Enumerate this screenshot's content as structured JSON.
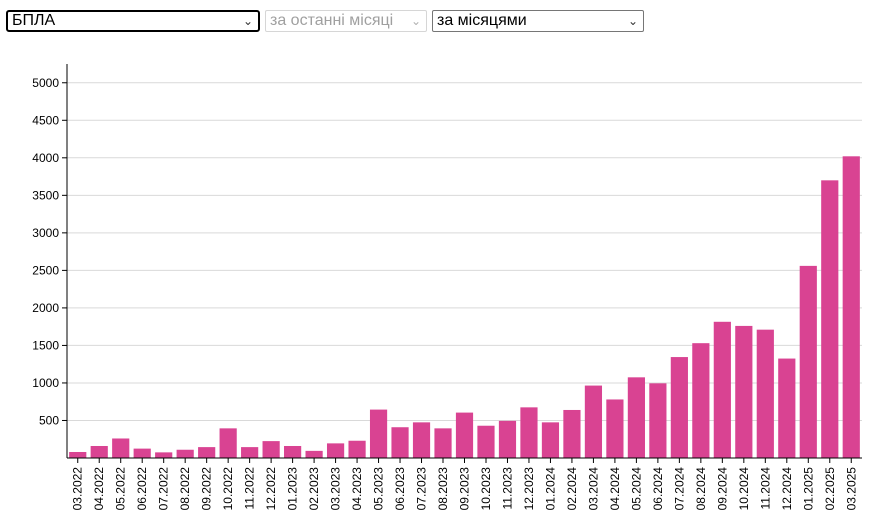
{
  "filters": {
    "type_select": {
      "value": "БПЛА"
    },
    "period_select": {
      "value": "за останні місяці"
    },
    "grouping_select": {
      "value": "за місяцями"
    }
  },
  "colors": {
    "bar": "#d94392",
    "grid": "#d9d9d9",
    "axis": "#000000"
  },
  "chart_data": {
    "type": "bar",
    "title": "",
    "xlabel": "",
    "ylabel": "",
    "ylim": [
      0,
      5250
    ],
    "yticks": [
      500,
      1000,
      1500,
      2000,
      2500,
      3000,
      3500,
      4000,
      4500,
      5000
    ],
    "grid": true,
    "categories": [
      "03.2022",
      "04.2022",
      "05.2022",
      "06.2022",
      "07.2022",
      "08.2022",
      "09.2022",
      "10.2022",
      "11.2022",
      "12.2022",
      "01.2023",
      "02.2023",
      "03.2023",
      "04.2023",
      "05.2023",
      "06.2023",
      "07.2023",
      "08.2023",
      "09.2023",
      "10.2023",
      "11.2023",
      "12.2023",
      "01.2024",
      "02.2024",
      "03.2024",
      "04.2024",
      "05.2024",
      "06.2024",
      "07.2024",
      "08.2024",
      "09.2024",
      "10.2024",
      "11.2024",
      "12.2024",
      "01.2025",
      "02.2025",
      "03.2025"
    ],
    "values": [
      80,
      160,
      260,
      125,
      75,
      110,
      145,
      395,
      145,
      225,
      160,
      95,
      195,
      230,
      645,
      410,
      475,
      395,
      605,
      430,
      495,
      675,
      475,
      640,
      965,
      780,
      1075,
      995,
      1345,
      1530,
      1815,
      1760,
      1710,
      1325,
      2560,
      3700,
      4020
    ]
  }
}
